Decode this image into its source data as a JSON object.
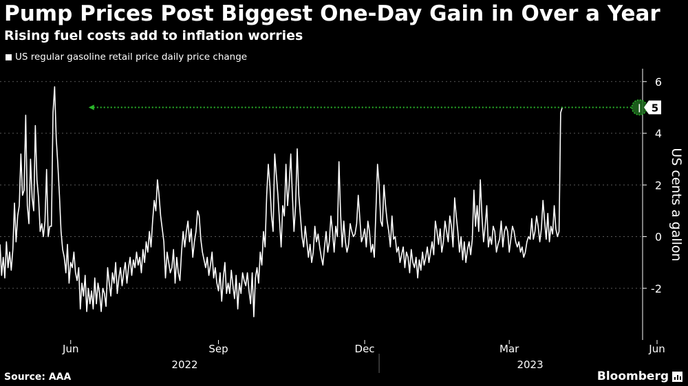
{
  "header": {
    "title": "Pump Prices Post Biggest One-Day Gain in Over a Year",
    "subtitle": "Rising fuel costs add to inflation worries",
    "legend_label": "US regular gasoline retail price daily price change"
  },
  "footer": {
    "source": "Source: AAA",
    "brand": "Bloomberg"
  },
  "colors": {
    "background": "#000000",
    "line": "#ffffff",
    "highlight": "#2bb52b"
  },
  "chart_data": {
    "type": "line",
    "title": "Pump Prices Post Biggest One-Day Gain in Over a Year",
    "subtitle": "Rising fuel costs add to inflation worries",
    "ylabel": "US cents a gallon",
    "ylim": [
      -4,
      6.5
    ],
    "yticks": [
      -2,
      0,
      2,
      4,
      6
    ],
    "xlim": [
      0,
      400
    ],
    "x_ticks": [
      {
        "x": 44,
        "label": "Jun"
      },
      {
        "x": 136,
        "label": "Sep"
      },
      {
        "x": 227,
        "label": "Dec"
      },
      {
        "x": 317,
        "label": "Mar"
      },
      {
        "x": 409,
        "label": "Jun"
      }
    ],
    "year_labels": [
      {
        "x": 115,
        "label": "2022"
      },
      {
        "x": 330,
        "label": "2023"
      }
    ],
    "year_divider_x": 236,
    "annotation": {
      "x": 398,
      "value": 5,
      "label": "5",
      "arrow_to_x": 56
    },
    "series": [
      {
        "name": "US regular gasoline retail price daily price change",
        "values": [
          -0.3,
          -1.5,
          -0.8,
          -1.6,
          -0.2,
          -1.2,
          -0.6,
          -1.3,
          -0.5,
          1.3,
          -0.2,
          0.8,
          1.2,
          3.2,
          1.6,
          1.8,
          4.7,
          1.2,
          0.5,
          3.0,
          1.5,
          1.0,
          4.3,
          2.2,
          1.5,
          0.2,
          0.5,
          0.0,
          0.6,
          2.6,
          0.0,
          0.4,
          0.4,
          4.8,
          5.8,
          3.8,
          2.8,
          1.6,
          0.2,
          -0.5,
          -0.8,
          -1.4,
          -0.3,
          -1.8,
          -1.0,
          -1.2,
          -0.6,
          -1.4,
          -1.7,
          -1.2,
          -2.8,
          -1.8,
          -2.3,
          -1.5,
          -2.9,
          -2.0,
          -2.6,
          -2.1,
          -2.8,
          -1.6,
          -2.6,
          -1.8,
          -2.2,
          -2.9,
          -2.0,
          -2.2,
          -2.7,
          -1.2,
          -1.8,
          -2.3,
          -1.4,
          -1.8,
          -1.0,
          -2.2,
          -1.6,
          -1.2,
          -1.9,
          -1.4,
          -1.0,
          -1.8,
          -1.2,
          -0.8,
          -1.5,
          -0.9,
          -1.2,
          -0.6,
          -1.1,
          -0.8,
          -1.4,
          -0.5,
          -1.0,
          -0.2,
          -0.6,
          0.2,
          -0.4,
          0.6,
          1.4,
          1.0,
          2.2,
          1.6,
          0.8,
          0.3,
          -0.2,
          -1.6,
          -0.6,
          -1.0,
          -1.4,
          -1.2,
          -0.5,
          -1.8,
          -0.8,
          -1.4,
          -1.7,
          -0.6,
          0.2,
          -0.4,
          0.2,
          0.6,
          -0.2,
          0.3,
          -0.8,
          -0.2,
          0.2,
          1.0,
          0.8,
          -0.1,
          -0.6,
          -0.9,
          -1.2,
          -0.8,
          -1.5,
          -1.1,
          -0.6,
          -1.6,
          -1.2,
          -1.8,
          -2.1,
          -1.4,
          -2.5,
          -1.6,
          -1.0,
          -2.2,
          -1.8,
          -2.2,
          -1.3,
          -1.9,
          -2.4,
          -1.5,
          -2.8,
          -1.8,
          -2.2,
          -1.4,
          -1.7,
          -1.9,
          -1.4,
          -2.1,
          -2.6,
          -1.4,
          -3.1,
          -1.6,
          -1.2,
          -1.8,
          -0.6,
          -1.1,
          0.2,
          -0.4,
          1.6,
          2.8,
          2.0,
          0.8,
          0.2,
          3.2,
          2.4,
          1.6,
          0.6,
          -0.4,
          1.2,
          0.8,
          2.8,
          1.2,
          2.0,
          3.2,
          1.6,
          0.2,
          1.2,
          3.4,
          1.6,
          0.8,
          0.0,
          -0.4,
          0.4,
          -0.2,
          -0.8,
          -0.3,
          -1.0,
          -0.6,
          0.4,
          -0.2,
          0.1,
          -0.4,
          -0.8,
          -1.1,
          -0.4,
          0.2,
          -0.6,
          -0.2,
          0.8,
          0.2,
          -0.6,
          0.4,
          0.0,
          2.9,
          0.9,
          -0.4,
          0.6,
          -0.2,
          -0.6,
          -0.3,
          0.5,
          0.2,
          0.0,
          0.1,
          0.5,
          1.6,
          0.7,
          -0.2,
          0.0,
          0.3,
          -0.4,
          0.6,
          0.2,
          -0.6,
          -0.3,
          -0.8,
          1.0,
          2.8,
          2.0,
          0.6,
          0.4,
          2.0,
          1.2,
          0.6,
          0.2,
          -0.4,
          0.8,
          -0.1,
          0.0,
          -0.6,
          -0.4,
          -1.0,
          -0.7,
          -0.4,
          -1.2,
          -0.6,
          -0.8,
          -1.4,
          -0.5,
          -1.0,
          -1.2,
          -0.8,
          -1.6,
          -0.9,
          -1.3,
          -0.6,
          -1.1,
          -0.8,
          -0.4,
          -1.0,
          -0.6,
          -0.2,
          -0.7,
          0.6,
          0.2,
          -0.3,
          0.3,
          -0.6,
          -0.2,
          0.6,
          0.2,
          -0.2,
          0.8,
          0.4,
          -0.4,
          1.5,
          0.8,
          0.2,
          -0.6,
          0.0,
          -0.9,
          -0.2,
          -1.0,
          -0.5,
          -0.2,
          -0.7,
          -0.1,
          1.8,
          0.4,
          1.2,
          0.2,
          2.2,
          0.8,
          -0.2,
          0.4,
          1.2,
          -0.4,
          0.0,
          -0.3,
          0.4,
          0.2,
          -0.6,
          -0.3,
          -0.1,
          0.6,
          -0.4,
          0.2,
          0.4,
          0.2,
          -0.6,
          -0.1,
          0.4,
          0.2,
          -0.2,
          -0.4,
          -0.2,
          -0.6,
          -0.4,
          -0.8,
          -0.6,
          -0.2,
          0.0,
          -0.1,
          0.7,
          -0.1,
          0.2,
          0.8,
          0.4,
          -0.2,
          0.3,
          1.4,
          0.6,
          -0.1,
          0.9,
          -0.2,
          0.4,
          0.1,
          1.2,
          0.3,
          0.0,
          0.2,
          4.8,
          5.0
        ]
      }
    ]
  }
}
